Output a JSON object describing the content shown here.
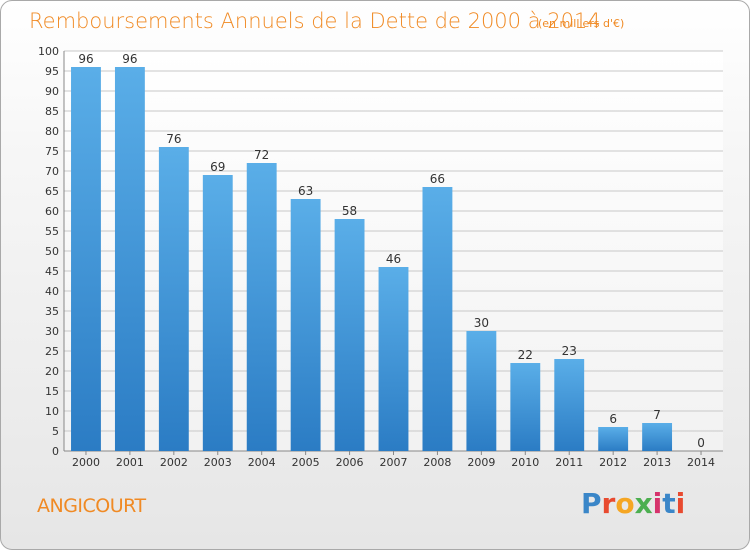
{
  "title": "Remboursements Annuels de la Dette de 2000 à 2014",
  "subtitle": "(en milliers d'€)",
  "commune": "ANGICOURT",
  "brand": {
    "text": "Proxiti",
    "colors": [
      "#3a86c8",
      "#e84a2f",
      "#f5a623",
      "#4caf50",
      "#d6336c"
    ]
  },
  "colors": {
    "title": "#f08a24",
    "bar_top": "#5aaee8",
    "bar_bottom": "#2b7cc4",
    "grid": "#c8c8c8"
  },
  "chart_data": {
    "type": "bar",
    "title": "Remboursements Annuels de la Dette de 2000 à 2014",
    "subtitle": "(en milliers d'€)",
    "xlabel": "",
    "ylabel": "",
    "ylim": [
      0,
      100
    ],
    "ytick_step": 5,
    "grid": true,
    "categories": [
      "2000",
      "2001",
      "2002",
      "2003",
      "2004",
      "2005",
      "2006",
      "2007",
      "2008",
      "2009",
      "2010",
      "2011",
      "2012",
      "2013",
      "2014"
    ],
    "values": [
      96,
      96,
      76,
      69,
      72,
      63,
      58,
      46,
      66,
      30,
      22,
      23,
      6,
      7,
      0
    ]
  }
}
